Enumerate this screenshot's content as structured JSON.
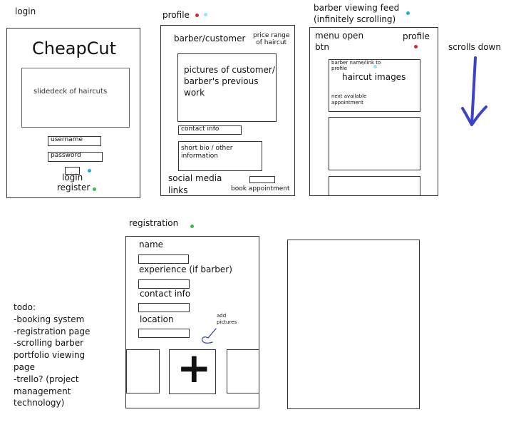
{
  "colors": {
    "red_dot": "#e0212e",
    "blue_dot": "#22a7e6",
    "green_dot": "#2fbf4d",
    "cyan_dot": "#8fe8f2",
    "arrow": "#3c43c8",
    "sketch": "#2a3aa6"
  },
  "login": {
    "section_label": "login",
    "app_title": "CheapCut",
    "slideshow_label": "slidedeck of haircuts",
    "username_placeholder": "username",
    "password_placeholder": "password",
    "login_label": "login",
    "register_label": "register"
  },
  "profile": {
    "section_label": "profile",
    "role_label": "barber/customer",
    "price_label": "price range\nof haircut",
    "pictures_label": "pictures of customer/ barber's previous work",
    "contact_label": "contact info",
    "bio_label": "short bio / other information",
    "social_label": "social media\nlinks",
    "book_label": "book appointment"
  },
  "feed": {
    "section_label": "barber viewing feed\n(infinitely scrolling)",
    "menu_label": "menu open\nbtn",
    "profile_label": "profile",
    "card_name_label": "barber name/link to profile",
    "card_images_label": "haircut images",
    "card_appointment_label": "next available appointment",
    "scroll_label": "scrolls down"
  },
  "registration": {
    "section_label": "registration",
    "name_label": "name",
    "experience_label": "experience (if barber)",
    "contact_label": "contact info",
    "location_label": "location",
    "add_pictures_label": "add\npictures",
    "add_symbol": "+"
  },
  "todo": {
    "title": "todo:",
    "items": [
      "-booking system",
      "-registration page",
      "-scrolling barber portfolio viewing page",
      "-trello? (project management technology)"
    ]
  }
}
